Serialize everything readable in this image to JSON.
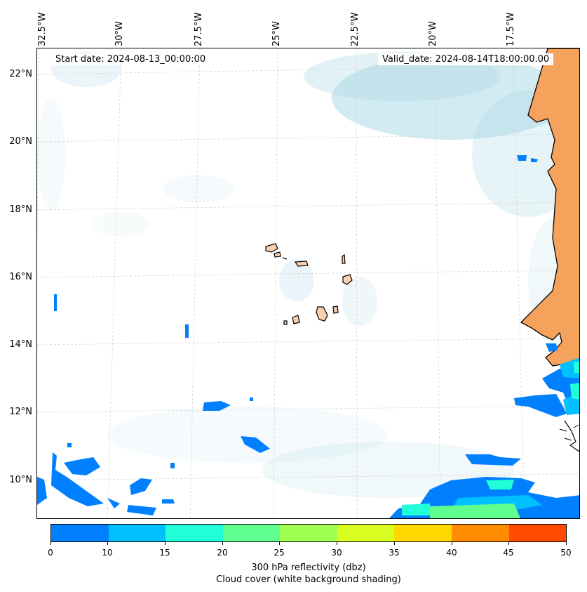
{
  "map": {
    "start_date": "Start date: 2024-08-13_00:00:00",
    "valid_date": "Valid_date: 2024-08-14T18:00:00.00",
    "lon_labels": [
      "32.5°W",
      "30°W",
      "27.5°W",
      "25°W",
      "22.5°W",
      "20°W",
      "17.5°W"
    ],
    "lat_labels": [
      "22°N",
      "20°N",
      "18°N",
      "16°N",
      "14°N",
      "12°N",
      "10°N"
    ],
    "colors": {
      "land": "#f5a25d",
      "island": "#f8d0b0",
      "cloud": "#add8e6",
      "coastline": "#000000"
    }
  },
  "colorbar": {
    "ticks": [
      "0",
      "10",
      "15",
      "20",
      "25",
      "30",
      "35",
      "40",
      "45",
      "50"
    ],
    "colors": [
      "#0080ff",
      "#00c0ff",
      "#20ffd8",
      "#60ff90",
      "#a0ff50",
      "#d8ff20",
      "#ffd800",
      "#ff8c00",
      "#ff4a00"
    ],
    "label1": "300 hPa reflectivity (dbz)",
    "label2": "Cloud cover (white background shading)"
  }
}
